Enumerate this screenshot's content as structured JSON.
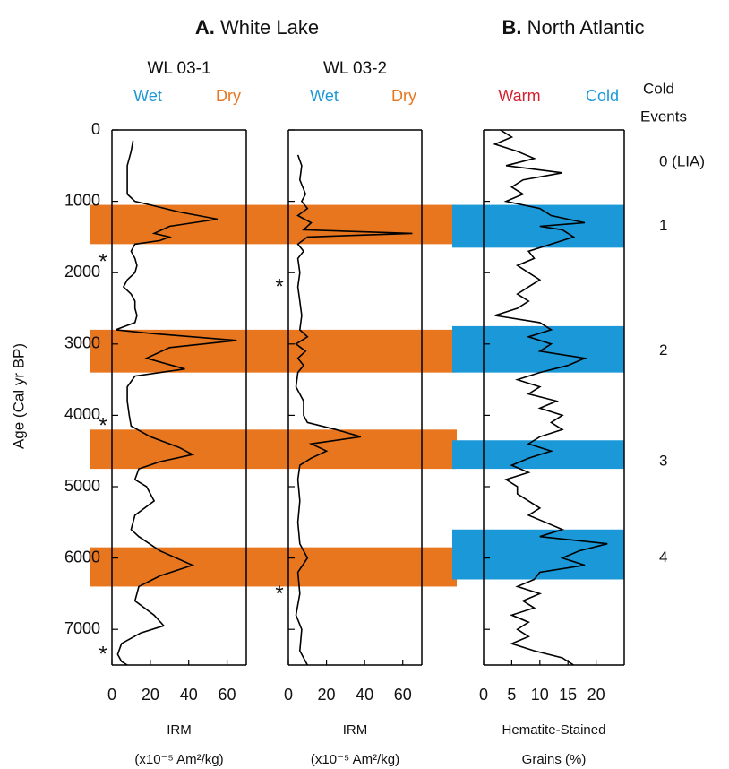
{
  "header": {
    "left_title": {
      "letter": "A.",
      "text": "White Lake"
    },
    "right_title": {
      "letter": "B.",
      "text": "North Atlantic"
    }
  },
  "y_axis": {
    "label": "Age (Cal yr BP)",
    "ylim": [
      0,
      7500
    ],
    "yticks": [
      0,
      1000,
      2000,
      3000,
      4000,
      5000,
      6000,
      7000
    ]
  },
  "white_lake_bands": {
    "color": "#e8761f",
    "ranges": [
      [
        1050,
        1600
      ],
      [
        2800,
        3400
      ],
      [
        4200,
        4750
      ],
      [
        5850,
        6400
      ]
    ]
  },
  "north_atlantic_bands": {
    "color": "#1a98d8",
    "ranges": [
      [
        1050,
        1650
      ],
      [
        2750,
        3400
      ],
      [
        4350,
        4750
      ],
      [
        5600,
        6300
      ]
    ]
  },
  "cold_events": {
    "title": [
      "Cold",
      "Events"
    ],
    "events": [
      {
        "label": "0 (LIA)",
        "age": 450
      },
      {
        "label": "1",
        "age": 1350
      },
      {
        "label": "2",
        "age": 3100
      },
      {
        "label": "3",
        "age": 4650
      },
      {
        "label": "4",
        "age": 6000
      }
    ]
  },
  "chart_data": [
    {
      "type": "line",
      "title": "WL 03-1",
      "left_label": "Wet",
      "left_color": "#1a98d8",
      "right_label": "Dry",
      "right_color": "#e8761f",
      "xlabel": "IRM",
      "xunit": "(x10⁻⁵ Am²/kg)",
      "xlim": [
        0,
        70
      ],
      "xticks": [
        0,
        20,
        40,
        60
      ],
      "color": "#000000",
      "asterisks": [
        {
          "label": "*",
          "age": 1800
        },
        {
          "label": "*",
          "age": 4100
        },
        {
          "label": "*",
          "age": 7300
        }
      ],
      "ages": [
        150,
        300,
        500,
        700,
        900,
        1000,
        1050,
        1150,
        1250,
        1350,
        1450,
        1500,
        1550,
        1600,
        1700,
        1800,
        1900,
        2000,
        2100,
        2200,
        2300,
        2400,
        2500,
        2600,
        2700,
        2800,
        2850,
        2950,
        3050,
        3200,
        3350,
        3450,
        3600,
        3800,
        4000,
        4150,
        4300,
        4450,
        4550,
        4650,
        4750,
        4900,
        5000,
        5200,
        5400,
        5600,
        5700,
        5900,
        6100,
        6250,
        6400,
        6600,
        6800,
        6950,
        7050,
        7200,
        7350,
        7450,
        7500
      ],
      "values": [
        11,
        10,
        8,
        8,
        8,
        12,
        20,
        35,
        55,
        30,
        22,
        30,
        25,
        12,
        10,
        12,
        13,
        12,
        8,
        6,
        10,
        12,
        12,
        13,
        12,
        2,
        20,
        65,
        30,
        18,
        38,
        12,
        8,
        8,
        9,
        10,
        20,
        35,
        42,
        25,
        14,
        12,
        18,
        22,
        12,
        10,
        14,
        25,
        42,
        25,
        14,
        12,
        22,
        27,
        15,
        5,
        3,
        5,
        8
      ]
    },
    {
      "type": "line",
      "title": "WL 03-2",
      "left_label": "Wet",
      "left_color": "#1a98d8",
      "right_label": "Dry",
      "right_color": "#e8761f",
      "xlabel": "IRM",
      "xunit": "(x10⁻⁵ Am²/kg)",
      "xlim": [
        0,
        70
      ],
      "xticks": [
        0,
        20,
        40,
        60
      ],
      "color": "#000000",
      "asterisks": [
        {
          "label": "*",
          "age": 2150
        },
        {
          "label": "*",
          "age": 6450
        }
      ],
      "ages": [
        350,
        500,
        700,
        900,
        1000,
        1100,
        1200,
        1300,
        1400,
        1450,
        1500,
        1600,
        1700,
        1800,
        2000,
        2200,
        2400,
        2600,
        2800,
        2900,
        3000,
        3100,
        3200,
        3300,
        3400,
        3600,
        3800,
        4000,
        4100,
        4200,
        4300,
        4400,
        4500,
        4600,
        4700,
        4900,
        5200,
        5500,
        5800,
        6000,
        6200,
        6500,
        6800,
        7000,
        7300,
        7500
      ],
      "values": [
        5,
        7,
        6,
        9,
        7,
        10,
        5,
        12,
        8,
        65,
        10,
        5,
        8,
        5,
        6,
        5,
        6,
        7,
        6,
        10,
        4,
        9,
        5,
        8,
        5,
        4,
        8,
        8,
        10,
        25,
        38,
        12,
        20,
        12,
        6,
        5,
        6,
        5,
        6,
        10,
        5,
        6,
        4,
        7,
        6,
        10
      ]
    },
    {
      "type": "line",
      "title": "",
      "left_label": "Warm",
      "left_color": "#d3212f",
      "right_label": "Cold",
      "right_color": "#1a98d8",
      "xlabel": "Hematite-Stained",
      "xunit": "Grains (%)",
      "xlim": [
        0,
        25
      ],
      "xticks": [
        0,
        5,
        10,
        15,
        20
      ],
      "color": "#000000",
      "asterisks": [],
      "ages": [
        0,
        100,
        200,
        300,
        400,
        500,
        600,
        700,
        800,
        900,
        1000,
        1100,
        1200,
        1300,
        1350,
        1400,
        1500,
        1600,
        1700,
        1800,
        1900,
        2000,
        2100,
        2200,
        2300,
        2400,
        2500,
        2600,
        2700,
        2800,
        2900,
        3000,
        3100,
        3200,
        3300,
        3400,
        3500,
        3600,
        3700,
        3800,
        3900,
        4000,
        4100,
        4200,
        4300,
        4400,
        4500,
        4600,
        4700,
        4800,
        4900,
        5000,
        5100,
        5200,
        5300,
        5400,
        5500,
        5600,
        5700,
        5800,
        5900,
        6000,
        6100,
        6200,
        6300,
        6400,
        6500,
        6600,
        6700,
        6800,
        6900,
        7000,
        7100,
        7200,
        7300,
        7400,
        7500
      ],
      "values": [
        3,
        5,
        2,
        6,
        9,
        4,
        14,
        7,
        5,
        7,
        4,
        10,
        12,
        18,
        10,
        14,
        16,
        12,
        8,
        9,
        6,
        8,
        10,
        8,
        6,
        8,
        6,
        2,
        10,
        12,
        8,
        12,
        10,
        18,
        15,
        10,
        6,
        10,
        8,
        13,
        10,
        14,
        12,
        14,
        10,
        8,
        12,
        8,
        5,
        8,
        4,
        6,
        6,
        8,
        10,
        8,
        11,
        14,
        10,
        22,
        17,
        14,
        18,
        10,
        9,
        6,
        10,
        7,
        9,
        5,
        8,
        6,
        8,
        5,
        9,
        14,
        16
      ]
    }
  ]
}
